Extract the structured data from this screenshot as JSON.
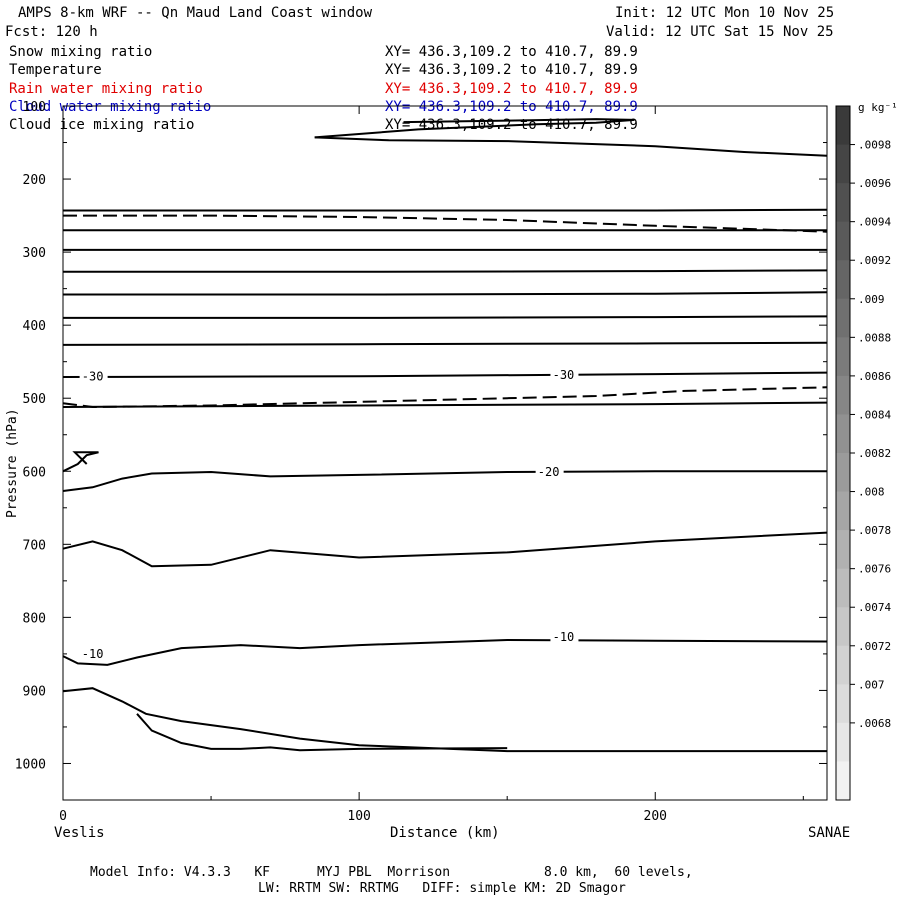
{
  "header": {
    "title": "AMPS 8-km WRF -- Qn Maud Land Coast window",
    "fcst": "Fcst: 120 h",
    "init": "Init: 12 UTC Mon 10 Nov 25",
    "valid": "Valid: 12 UTC Sat 15 Nov 25"
  },
  "fields": [
    {
      "name": "Snow mixing ratio",
      "xy": "XY= 436.3,109.2 to 410.7, 89.9",
      "color": "#000000"
    },
    {
      "name": "Temperature",
      "xy": "XY= 436.3,109.2 to 410.7, 89.9",
      "color": "#000000"
    },
    {
      "name": "Rain water mixing ratio",
      "xy": "XY= 436.3,109.2 to 410.7, 89.9",
      "color": "#e00000"
    },
    {
      "name": "Cloud water mixing ratio",
      "xy": "XY= 436.3,109.2 to 410.7, 89.9",
      "color": "#0000c0"
    },
    {
      "name": "Cloud ice mixing ratio",
      "xy": "XY= 436.3,109.2 to 410.7, 89.9",
      "color": "#000000"
    }
  ],
  "chart_data": {
    "type": "line",
    "xlabel": "Distance (km)",
    "ylabel": "Pressure (hPa)",
    "xlim": [
      0,
      258
    ],
    "ylim": [
      1050,
      100
    ],
    "y_scale": "linear-inverted",
    "x_ticks": [
      0,
      100,
      200
    ],
    "y_ticks": [
      100,
      200,
      300,
      400,
      500,
      600,
      700,
      800,
      900,
      1000
    ],
    "x_left_label": "Veslis",
    "x_right_label": "SANAE",
    "contour_labels": [
      {
        "text": "-30",
        "x": 10,
        "y": 470
      },
      {
        "text": "-30",
        "x": 169,
        "y": 468
      },
      {
        "text": "-20",
        "x": 164,
        "y": 601
      },
      {
        "text": "-10",
        "x": 169,
        "y": 827
      },
      {
        "text": "-10",
        "x": 10,
        "y": 850
      }
    ],
    "series": [
      {
        "style": "solid",
        "x": [
          85,
          110,
          150,
          200,
          230,
          258
        ],
        "y": [
          143,
          147,
          148,
          155,
          163,
          168
        ]
      },
      {
        "style": "solid",
        "x": [
          85,
          120,
          160,
          180,
          193,
          180,
          150,
          115
        ],
        "y": [
          143,
          132,
          125,
          123,
          119,
          118,
          120,
          122
        ]
      },
      {
        "style": "solid",
        "x": [
          0,
          100,
          200,
          258
        ],
        "y": [
          243,
          243,
          243,
          242
        ]
      },
      {
        "style": "dashed",
        "x": [
          0,
          50,
          100,
          150,
          200,
          258
        ],
        "y": [
          250,
          250,
          252,
          256,
          264,
          272
        ]
      },
      {
        "style": "solid",
        "x": [
          0,
          100,
          200,
          258
        ],
        "y": [
          270,
          270,
          270,
          270
        ]
      },
      {
        "style": "solid",
        "x": [
          0,
          100,
          200,
          258
        ],
        "y": [
          297,
          297,
          297,
          297
        ]
      },
      {
        "style": "solid",
        "x": [
          0,
          100,
          200,
          258
        ],
        "y": [
          327,
          327,
          326,
          325
        ]
      },
      {
        "style": "solid",
        "x": [
          0,
          100,
          200,
          258
        ],
        "y": [
          358,
          358,
          357,
          355
        ]
      },
      {
        "style": "solid",
        "x": [
          0,
          100,
          200,
          258
        ],
        "y": [
          390,
          390,
          389,
          388
        ]
      },
      {
        "style": "solid",
        "x": [
          0,
          100,
          200,
          258
        ],
        "y": [
          427,
          426,
          425,
          424
        ]
      },
      {
        "style": "solid",
        "x": [
          0,
          100,
          200,
          258
        ],
        "y": [
          471,
          470,
          467,
          465
        ]
      },
      {
        "style": "dashed",
        "x": [
          0,
          10,
          50,
          100,
          150,
          180,
          210,
          258
        ],
        "y": [
          507,
          512,
          510,
          505,
          500,
          497,
          490,
          485
        ]
      },
      {
        "style": "solid",
        "x": [
          0,
          50,
          100,
          200,
          258
        ],
        "y": [
          512,
          511,
          510,
          508,
          506
        ]
      },
      {
        "style": "solid",
        "x": [
          0,
          5,
          8,
          12,
          4,
          8
        ],
        "y": [
          600,
          590,
          578,
          574,
          574,
          590
        ]
      },
      {
        "style": "solid",
        "x": [
          0,
          10,
          20,
          30,
          50,
          70,
          100,
          150,
          200,
          258
        ],
        "y": [
          627,
          622,
          610,
          603,
          601,
          607,
          605,
          601,
          600,
          600
        ]
      },
      {
        "style": "solid",
        "x": [
          0,
          10,
          20,
          30,
          50,
          70,
          100,
          150,
          200,
          258
        ],
        "y": [
          706,
          696,
          708,
          730,
          728,
          708,
          718,
          711,
          696,
          684
        ]
      },
      {
        "style": "solid",
        "x": [
          0,
          5,
          15,
          25,
          40,
          60,
          80,
          100,
          150,
          200,
          258
        ],
        "y": [
          853,
          863,
          865,
          855,
          842,
          838,
          842,
          838,
          831,
          832,
          833
        ]
      },
      {
        "style": "solid",
        "x": [
          0,
          10,
          20,
          28,
          40,
          60,
          80,
          100,
          150,
          200,
          258
        ],
        "y": [
          901,
          897,
          915,
          932,
          942,
          953,
          966,
          975,
          983,
          983,
          983
        ]
      },
      {
        "style": "solid",
        "x": [
          25,
          30,
          40,
          50,
          60,
          70,
          80,
          100,
          150
        ],
        "y": [
          932,
          955,
          972,
          980,
          980,
          978,
          982,
          980,
          979
        ]
      }
    ]
  },
  "colorbar": {
    "unit_label": "g kg⁻¹",
    "labels": [
      ".0098",
      ".0096",
      ".0094",
      ".0092",
      ".009",
      ".0088",
      ".0086",
      ".0084",
      ".0082",
      ".008",
      ".0078",
      ".0076",
      ".0074",
      ".0072",
      ".007",
      ".0068"
    ],
    "dark_color": "#3a3a3a",
    "light_color": "#f2f2f2"
  },
  "footer": {
    "line1": "Model Info: V4.3.3   KF      MYJ PBL  Morrison            8.0 km,  60 levels,",
    "line2": "LW: RRTM SW: RRTMG   DIFF: simple KM: 2D Smagor"
  }
}
